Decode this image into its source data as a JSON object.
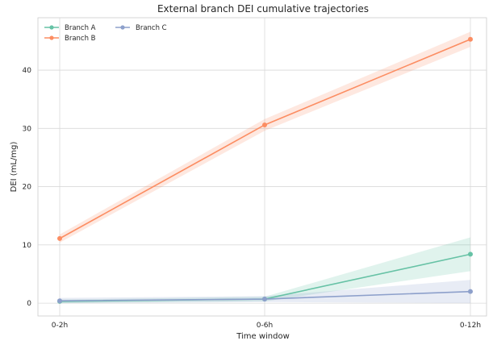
{
  "chart_data": {
    "type": "line",
    "title": "External branch DEI cumulative trajectories",
    "xlabel": "Time window",
    "ylabel": "DEI (mL/mg)",
    "categories": [
      "0-2h",
      "0-6h",
      "0-12h"
    ],
    "ylim": [
      -2.2,
      49
    ],
    "yticks": [
      0,
      10,
      20,
      30,
      40
    ],
    "grid": true,
    "legend_position": "top-left",
    "series": [
      {
        "name": "Branch A",
        "color": "#66c2a5",
        "values": [
          0.3,
          0.7,
          8.4
        ],
        "lower": [
          0.0,
          0.3,
          5.5
        ],
        "upper": [
          0.6,
          1.1,
          11.3
        ]
      },
      {
        "name": "Branch B",
        "color": "#fc8d62",
        "values": [
          11.1,
          30.6,
          45.3
        ],
        "lower": [
          10.4,
          29.6,
          44.0
        ],
        "upper": [
          11.8,
          31.6,
          46.6
        ]
      },
      {
        "name": "Branch C",
        "color": "#8da0cb",
        "values": [
          0.4,
          0.7,
          2.0
        ],
        "lower": [
          0.0,
          0.2,
          0.0
        ],
        "upper": [
          0.9,
          1.2,
          4.0
        ]
      }
    ]
  }
}
